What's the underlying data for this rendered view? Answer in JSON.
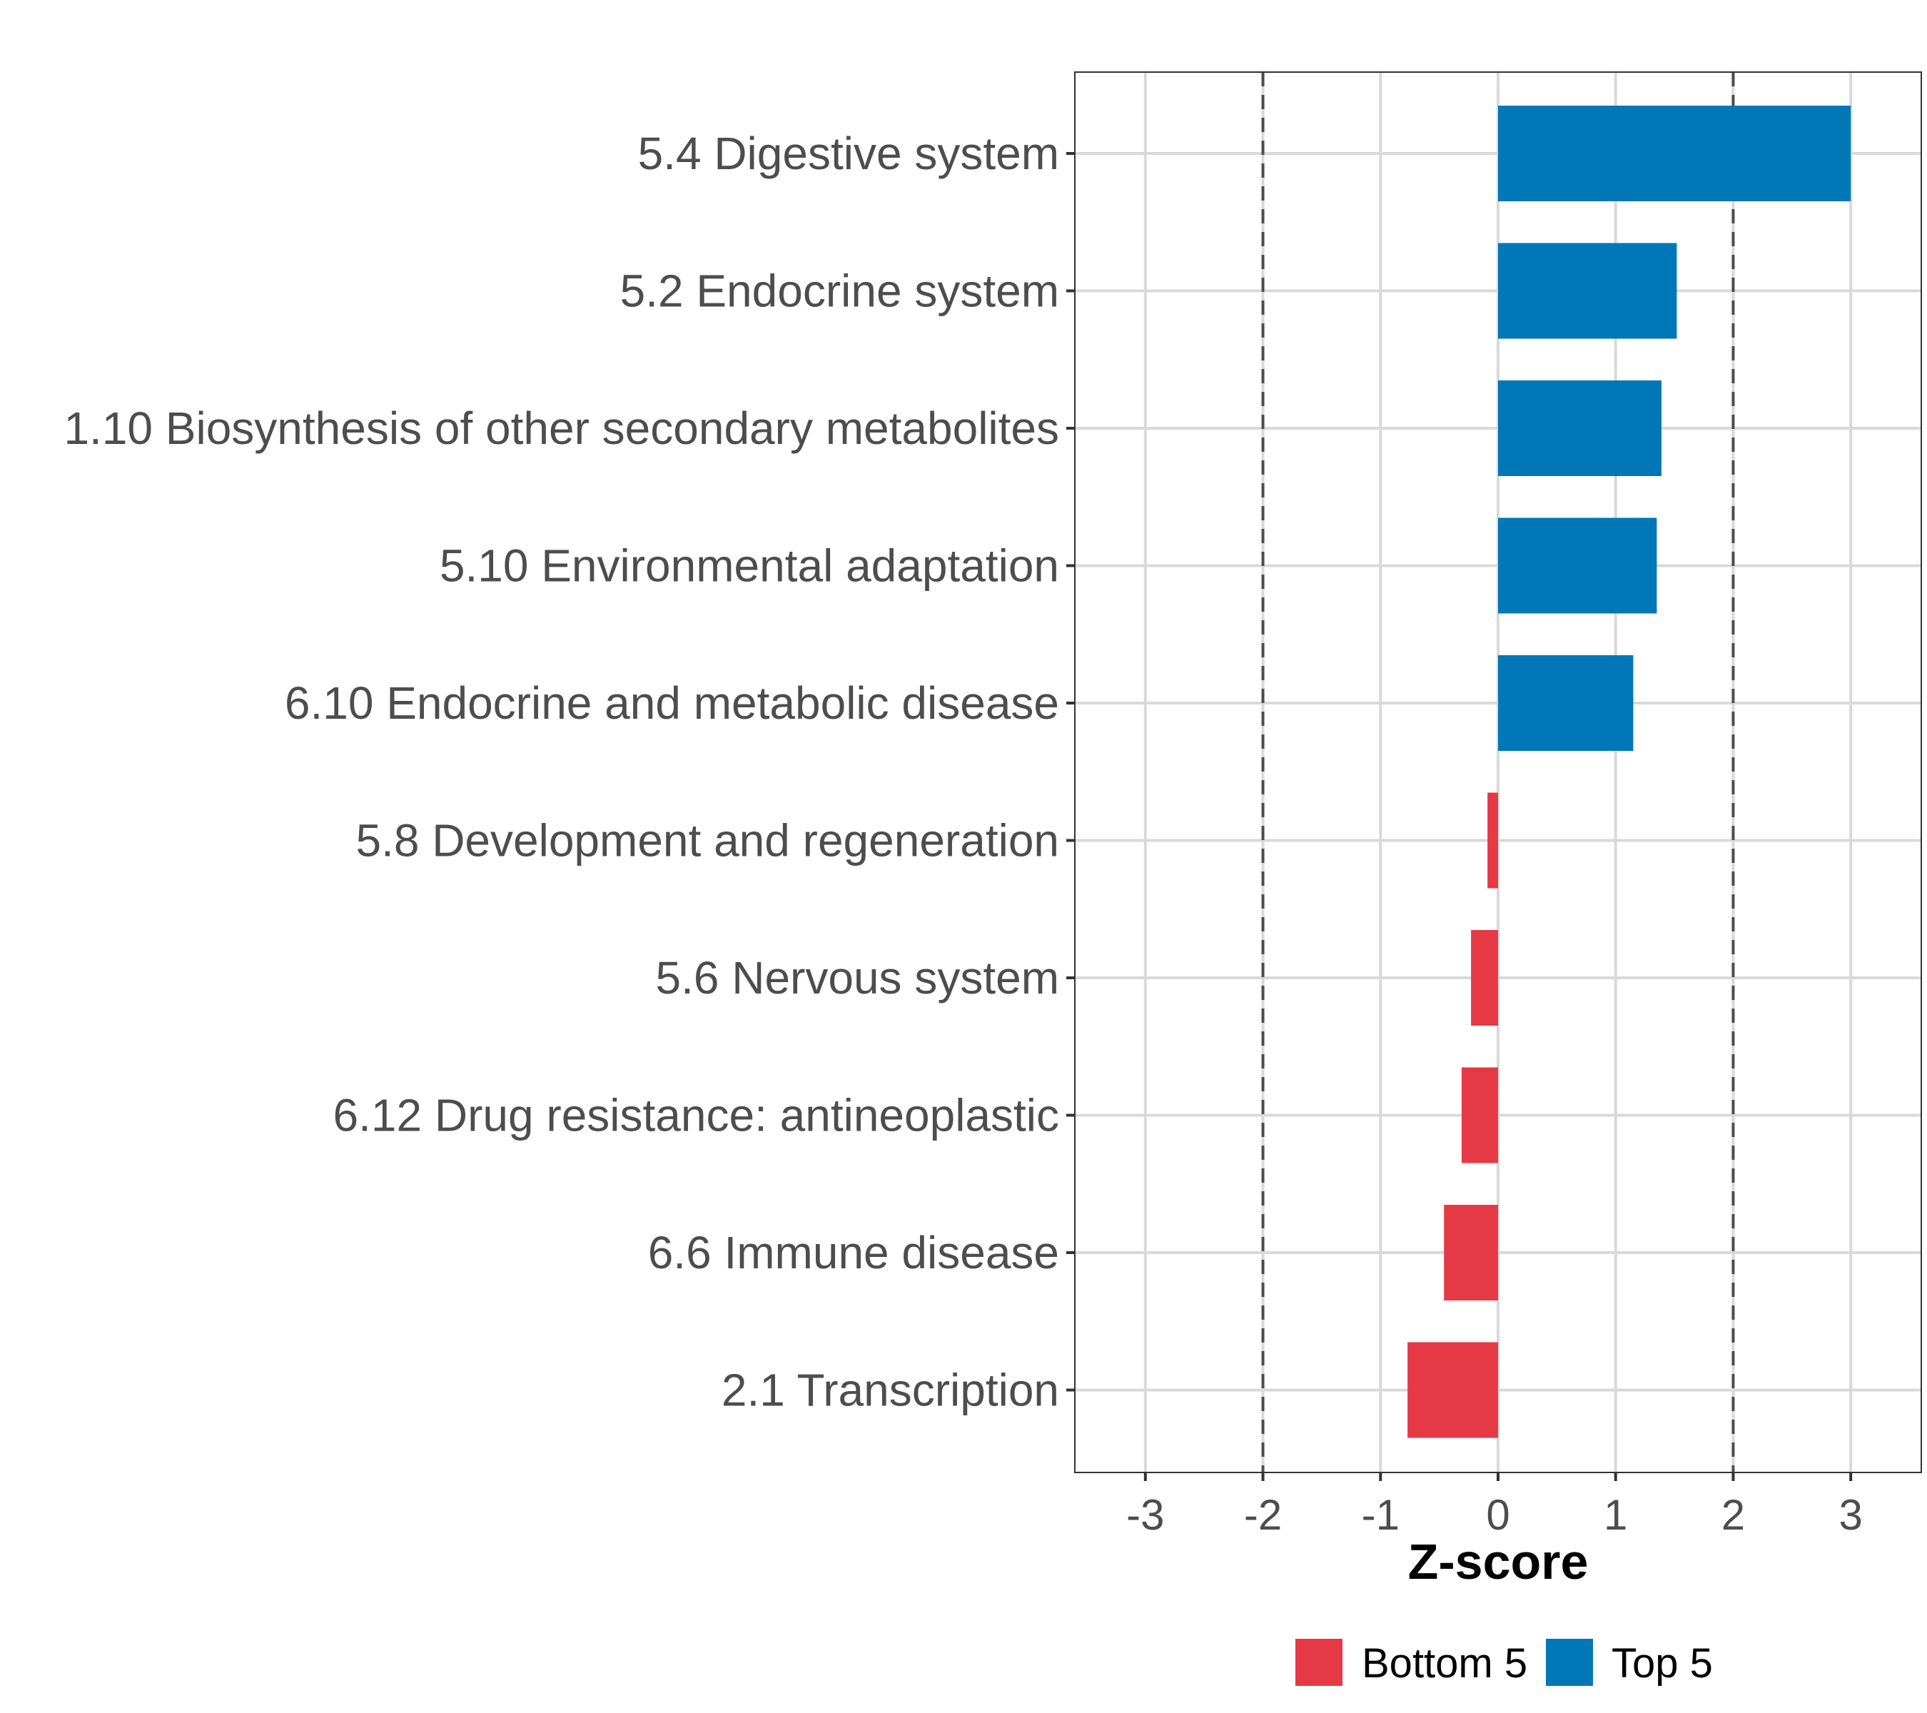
{
  "chart_data": {
    "type": "bar",
    "orientation": "horizontal",
    "title": "",
    "xlabel": "Z-score",
    "ylabel": "",
    "xlim": [
      -3.6,
      3.6
    ],
    "xticks": [
      -3,
      -2,
      -1,
      0,
      1,
      2,
      3
    ],
    "xtick_labels": [
      "-3",
      "-2",
      "-1",
      "0",
      "1",
      "2",
      "3"
    ],
    "grid": true,
    "reference_lines": [
      -2,
      2
    ],
    "categories": [
      "5.4 Digestive system",
      "5.2 Endocrine system",
      "1.10 Biosynthesis of other secondary metabolites",
      "5.10 Environmental adaptation",
      "6.10 Endocrine and metabolic disease",
      "5.8 Development and regeneration",
      "5.6 Nervous system",
      "6.12 Drug resistance: antineoplastic",
      "6.6 Immune disease",
      "2.1 Transcription"
    ],
    "values": [
      3.0,
      1.52,
      1.39,
      1.35,
      1.15,
      -0.09,
      -0.23,
      -0.31,
      -0.46,
      -0.77
    ],
    "groups": [
      "Top 5",
      "Top 5",
      "Top 5",
      "Top 5",
      "Top 5",
      "Bottom 5",
      "Bottom 5",
      "Bottom 5",
      "Bottom 5",
      "Bottom 5"
    ],
    "legend": {
      "position": "bottom",
      "entries": [
        {
          "name": "Bottom 5",
          "color": "#E63946"
        },
        {
          "name": "Top 5",
          "color": "#0077B6"
        }
      ]
    },
    "colors": {
      "Bottom 5": "#E63946",
      "Top 5": "#0077B6",
      "grid": "#d9d9d9",
      "reference_line": "#4d4d4d",
      "panel_border": "#333333"
    }
  }
}
